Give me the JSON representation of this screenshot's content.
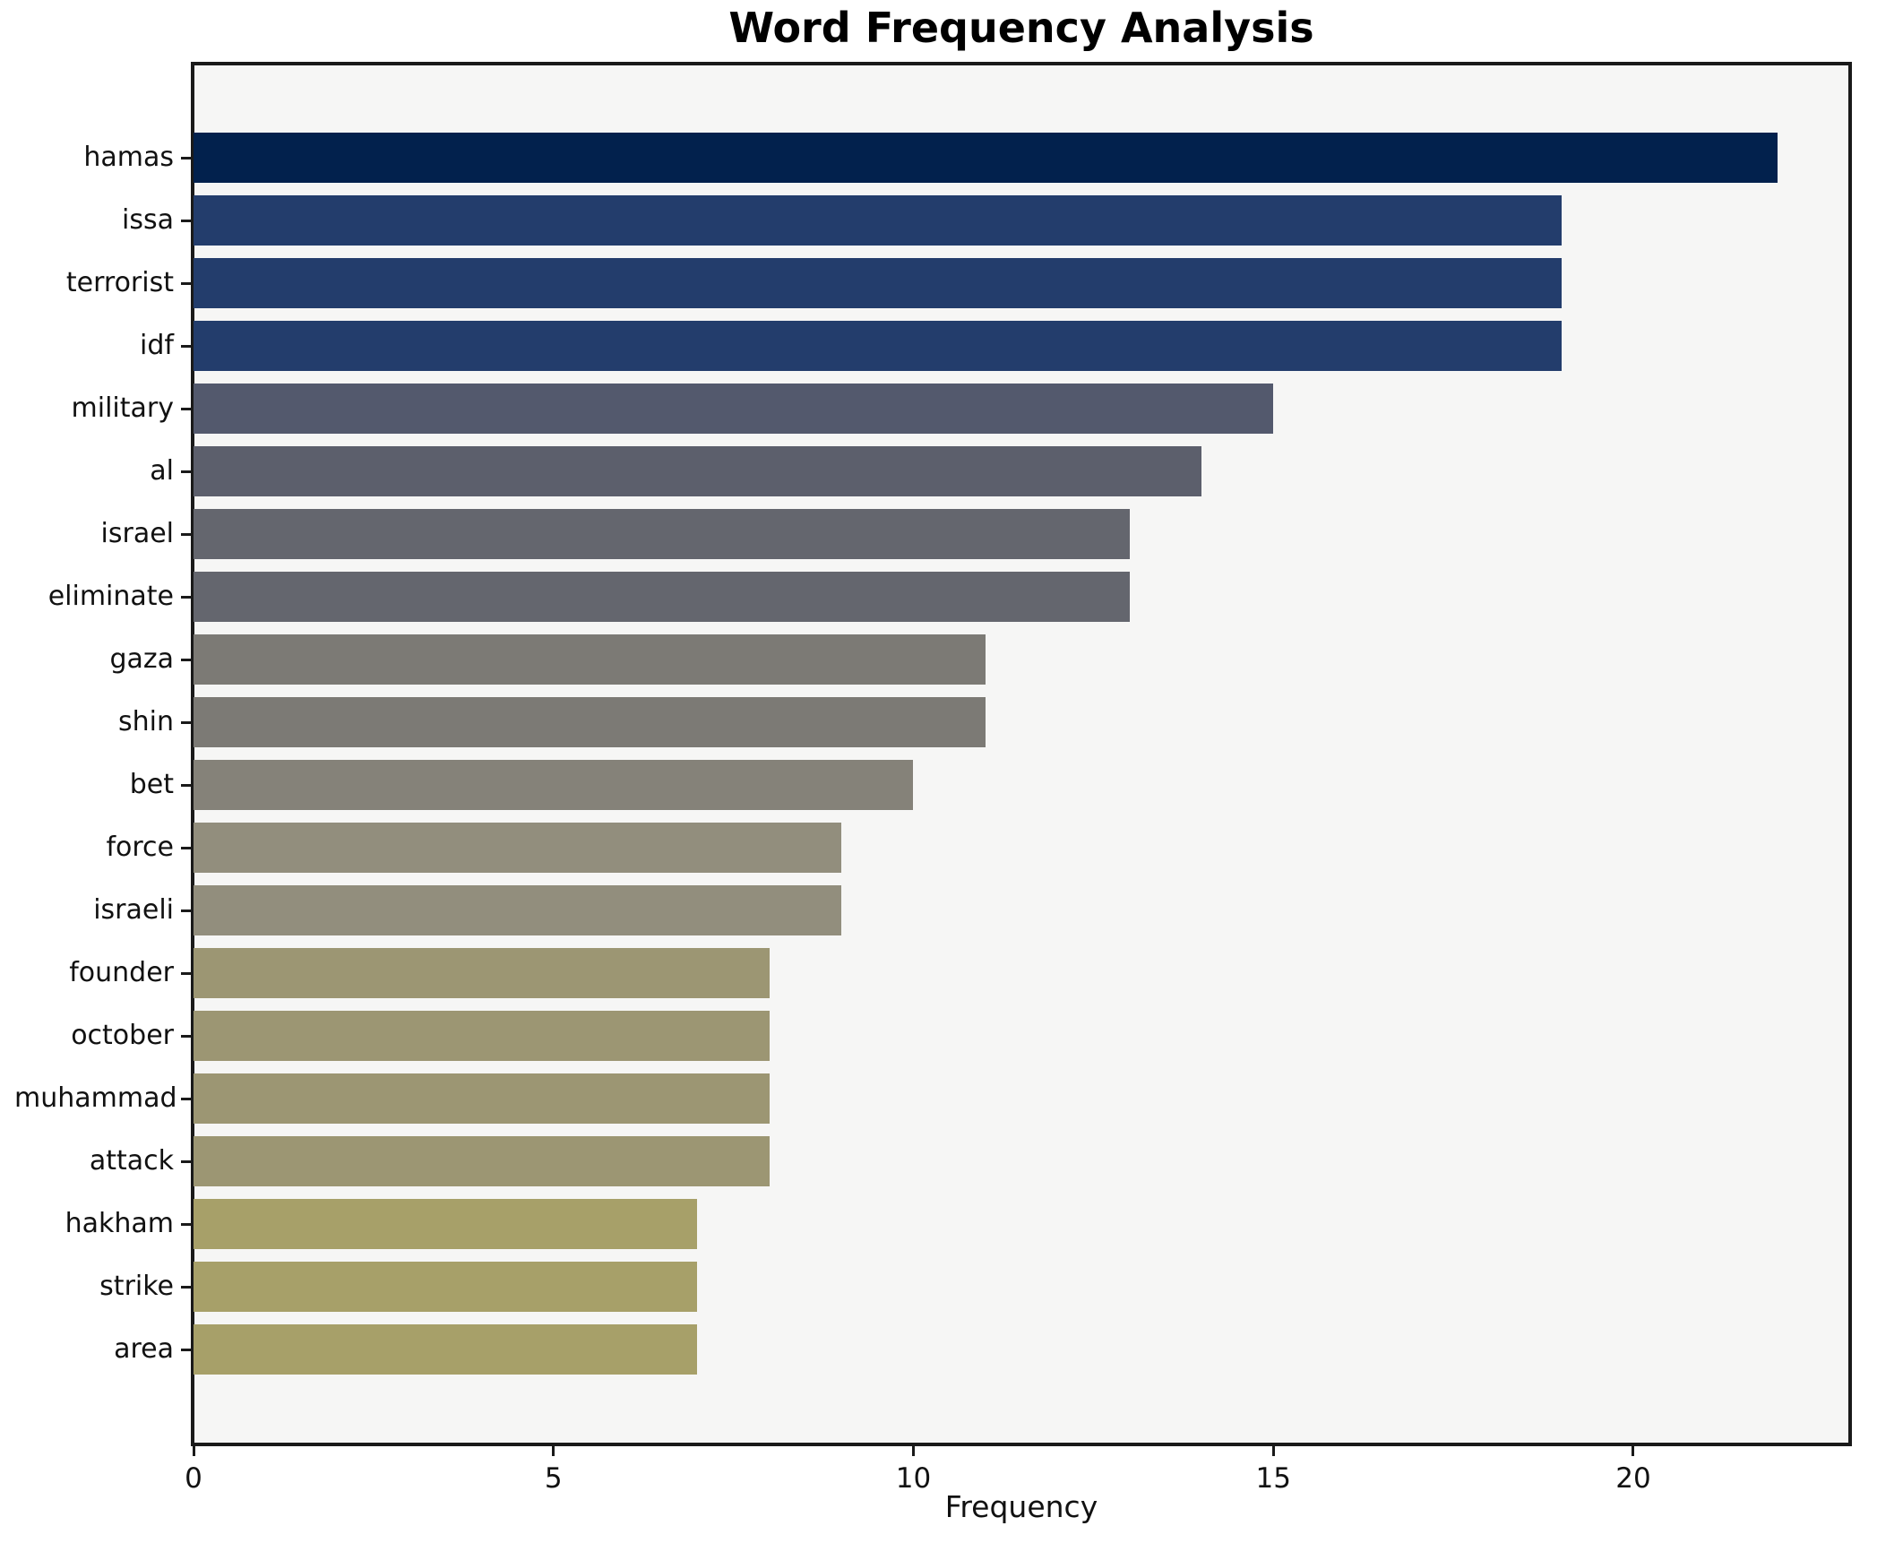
{
  "chart_data": {
    "type": "bar",
    "orientation": "horizontal",
    "title": "Word Frequency Analysis",
    "xlabel": "Frequency",
    "ylabel": "",
    "categories": [
      "hamas",
      "issa",
      "terrorist",
      "idf",
      "military",
      "al",
      "israel",
      "eliminate",
      "gaza",
      "shin",
      "bet",
      "force",
      "israeli",
      "founder",
      "october",
      "muhammad",
      "attack",
      "hakham",
      "strike",
      "area"
    ],
    "values": [
      22,
      19,
      19,
      19,
      15,
      14,
      13,
      13,
      11,
      11,
      10,
      9,
      9,
      8,
      8,
      8,
      8,
      7,
      7,
      7
    ],
    "bar_colors": [
      "#02214d",
      "#233d6c",
      "#233d6c",
      "#233d6c",
      "#53596d",
      "#5c5f6c",
      "#64666e",
      "#64666e",
      "#7c7a75",
      "#7c7a75",
      "#858279",
      "#928e7d",
      "#928e7d",
      "#9c9673",
      "#9c9673",
      "#9c9673",
      "#9c9673",
      "#a7a069",
      "#a7a069",
      "#a7a069"
    ],
    "xlim": [
      0,
      23
    ],
    "xticks": [
      0,
      5,
      10,
      15,
      20
    ],
    "grid": false,
    "legend_position": "none",
    "colors": {
      "figure_background": "#ffffff",
      "plot_background": "#f6f6f5",
      "spine": "#1a1a1a",
      "text": "#111111"
    }
  }
}
